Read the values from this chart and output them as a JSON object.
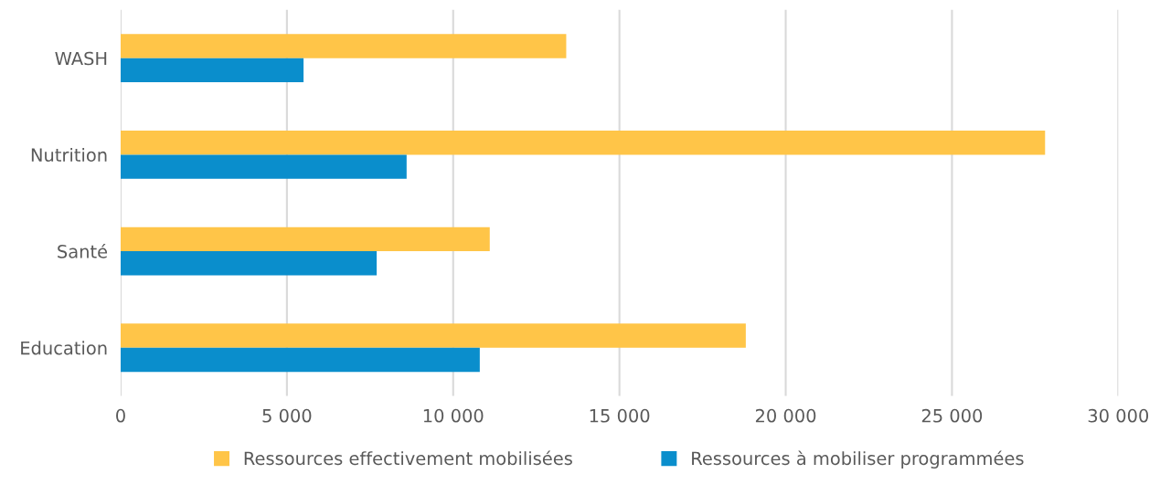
{
  "chart_data": {
    "type": "bar",
    "orientation": "horizontal",
    "categories": [
      "WASH",
      "Nutrition",
      "Santé",
      "Education"
    ],
    "series": [
      {
        "name": "Ressources effectivement mobilisées",
        "color": "#ffc548",
        "values": [
          13400,
          27800,
          11100,
          18800
        ]
      },
      {
        "name": "Ressources à mobiliser programmées",
        "color": "#0a8ecc",
        "values": [
          5500,
          8600,
          7700,
          10800
        ]
      }
    ],
    "xlim": [
      0,
      30000
    ],
    "xticks": [
      0,
      {
        "value": 5000,
        "label": "5 000"
      },
      {
        "value": 10000,
        "label": "10 000"
      },
      {
        "value": 15000,
        "label": "15 000"
      },
      {
        "value": 20000,
        "label": "20 000"
      },
      {
        "value": 25000,
        "label": "25 000"
      },
      {
        "value": 30000,
        "label": "30 000"
      }
    ],
    "grid": "x",
    "legend": "bottom"
  }
}
